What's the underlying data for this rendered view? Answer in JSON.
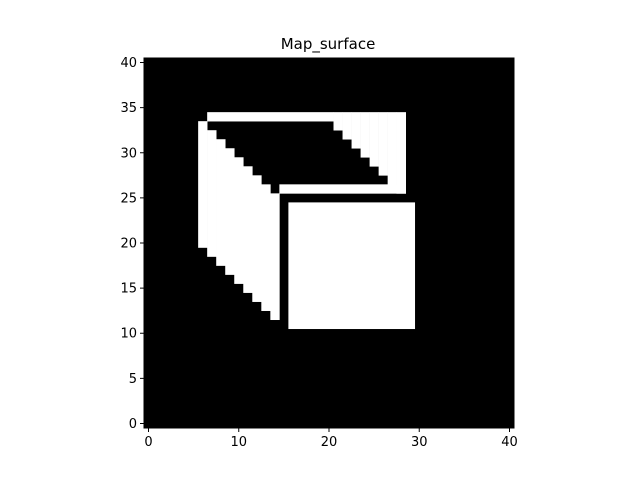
{
  "chart_data": {
    "type": "heatmap",
    "title": "Map_surface",
    "xlabel": "",
    "ylabel": "",
    "xlim": [
      -0.5,
      40.5
    ],
    "ylim": [
      -0.5,
      40.5
    ],
    "origin": "lower",
    "grid": false,
    "colormap": {
      "0": "#000000",
      "1": "#ffffff"
    },
    "xticks": [
      0,
      10,
      20,
      30,
      40
    ],
    "yticks": [
      0,
      5,
      10,
      15,
      20,
      25,
      30,
      35,
      40
    ],
    "xtick_labels": [
      "0",
      "10",
      "20",
      "30",
      "40"
    ],
    "ytick_labels": [
      "0",
      "5",
      "10",
      "15",
      "20",
      "25",
      "30",
      "35",
      "40"
    ],
    "value_one_rects": [
      {
        "x0": 16,
        "x1": 29,
        "y0": 11,
        "y1": 24
      },
      {
        "x0": 7,
        "x1": 20,
        "y0": 34,
        "y1": 34
      },
      {
        "x0": 21,
        "x1": 21,
        "y0": 33,
        "y1": 34
      },
      {
        "x0": 22,
        "x1": 22,
        "y0": 32,
        "y1": 34
      },
      {
        "x0": 23,
        "x1": 23,
        "y0": 31,
        "y1": 34
      },
      {
        "x0": 24,
        "x1": 24,
        "y0": 30,
        "y1": 34
      },
      {
        "x0": 25,
        "x1": 25,
        "y0": 29,
        "y1": 34
      },
      {
        "x0": 26,
        "x1": 26,
        "y0": 28,
        "y1": 34
      },
      {
        "x0": 27,
        "x1": 27,
        "y0": 27,
        "y1": 34
      },
      {
        "x0": 28,
        "x1": 28,
        "y0": 26,
        "y1": 34
      },
      {
        "x0": 6,
        "x1": 6,
        "y0": 20,
        "y1": 33
      },
      {
        "x0": 7,
        "x1": 7,
        "y0": 19,
        "y1": 32
      },
      {
        "x0": 8,
        "x1": 8,
        "y0": 18,
        "y1": 31
      },
      {
        "x0": 9,
        "x1": 9,
        "y0": 17,
        "y1": 30
      },
      {
        "x0": 10,
        "x1": 10,
        "y0": 16,
        "y1": 29
      },
      {
        "x0": 11,
        "x1": 11,
        "y0": 15,
        "y1": 28
      },
      {
        "x0": 12,
        "x1": 12,
        "y0": 14,
        "y1": 27
      },
      {
        "x0": 13,
        "x1": 13,
        "y0": 13,
        "y1": 26
      },
      {
        "x0": 14,
        "x1": 14,
        "y0": 12,
        "y1": 25
      },
      {
        "x0": 15,
        "x1": 27,
        "y0": 26,
        "y1": 26
      },
      {
        "x0": 28,
        "x1": 28,
        "y0": 26,
        "y1": 26
      }
    ]
  }
}
